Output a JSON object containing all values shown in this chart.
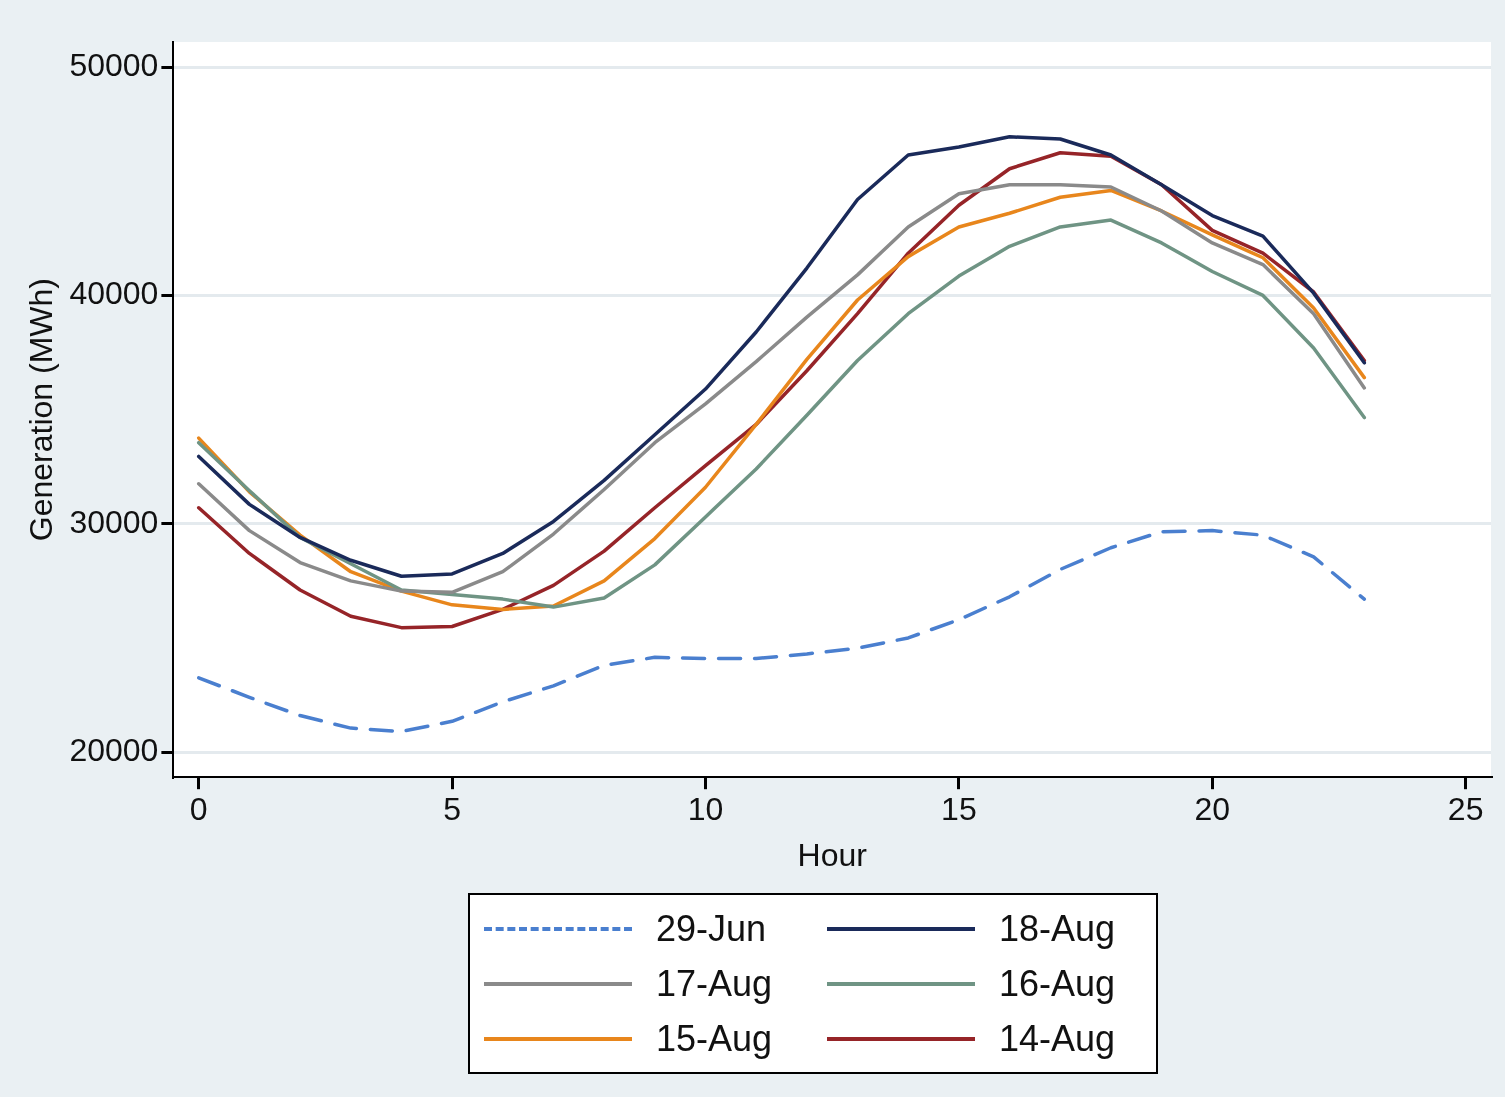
{
  "chart_data": {
    "type": "line",
    "xlabel": "Hour",
    "ylabel": "Generation (MWh)",
    "x": [
      0,
      1,
      2,
      3,
      4,
      5,
      6,
      7,
      8,
      9,
      10,
      11,
      12,
      13,
      14,
      15,
      16,
      17,
      18,
      19,
      20,
      21,
      22,
      23
    ],
    "xlim": [
      -0.5,
      25.5
    ],
    "xticks": [
      0,
      5,
      10,
      15,
      20,
      25
    ],
    "ylim": [
      18900,
      51100
    ],
    "yticks": [
      20000,
      30000,
      40000,
      50000
    ],
    "grid": "y",
    "legend": "bottom",
    "marker": "none",
    "series": [
      {
        "name": "29-Jun",
        "color": "#4a7fcf",
        "line_style": "dashed",
        "values": [
          23250,
          22400,
          21600,
          21050,
          20900,
          21350,
          22200,
          22900,
          23800,
          24150,
          24100,
          24100,
          24300,
          24550,
          25000,
          25800,
          26800,
          28000,
          28950,
          29650,
          29700,
          29500,
          28550,
          26700
        ]
      },
      {
        "name": "18-Aug",
        "color": "#1a2a5a",
        "line_style": "solid",
        "values": [
          32950,
          30850,
          29400,
          28400,
          27700,
          27800,
          28700,
          30100,
          31900,
          33900,
          35900,
          38400,
          41200,
          44200,
          46150,
          46500,
          46950,
          46850,
          46150,
          44850,
          43500,
          42600,
          40100,
          37050
        ]
      },
      {
        "name": "17-Aug",
        "color": "#8a8a8a",
        "line_style": "solid",
        "values": [
          31750,
          29700,
          28300,
          27500,
          27050,
          27000,
          27900,
          29550,
          31500,
          33550,
          35250,
          37100,
          39050,
          40900,
          43000,
          44450,
          44850,
          44850,
          44750,
          43700,
          42300,
          41350,
          39200,
          35950
        ]
      },
      {
        "name": "16-Aug",
        "color": "#6f9484",
        "line_style": "solid",
        "values": [
          33550,
          31450,
          29400,
          28250,
          27100,
          26900,
          26700,
          26350,
          26750,
          28200,
          30300,
          32400,
          34750,
          37150,
          39200,
          40850,
          42150,
          43000,
          43300,
          42300,
          41050,
          40000,
          37700,
          34650
        ]
      },
      {
        "name": "15-Aug",
        "color": "#e8861c",
        "line_style": "solid",
        "values": [
          33750,
          31400,
          29500,
          27900,
          27050,
          26450,
          26250,
          26400,
          27500,
          29350,
          31600,
          34350,
          37200,
          39800,
          41700,
          43000,
          43600,
          44300,
          44600,
          43700,
          42650,
          41650,
          39450,
          36400
        ]
      },
      {
        "name": "14-Aug",
        "color": "#962428",
        "line_style": "solid",
        "values": [
          30700,
          28700,
          27100,
          25950,
          25450,
          25500,
          26250,
          27300,
          28800,
          30700,
          32550,
          34350,
          36700,
          39200,
          41850,
          43950,
          45550,
          46250,
          46100,
          44850,
          42850,
          41850,
          40150,
          37150
        ]
      }
    ]
  }
}
